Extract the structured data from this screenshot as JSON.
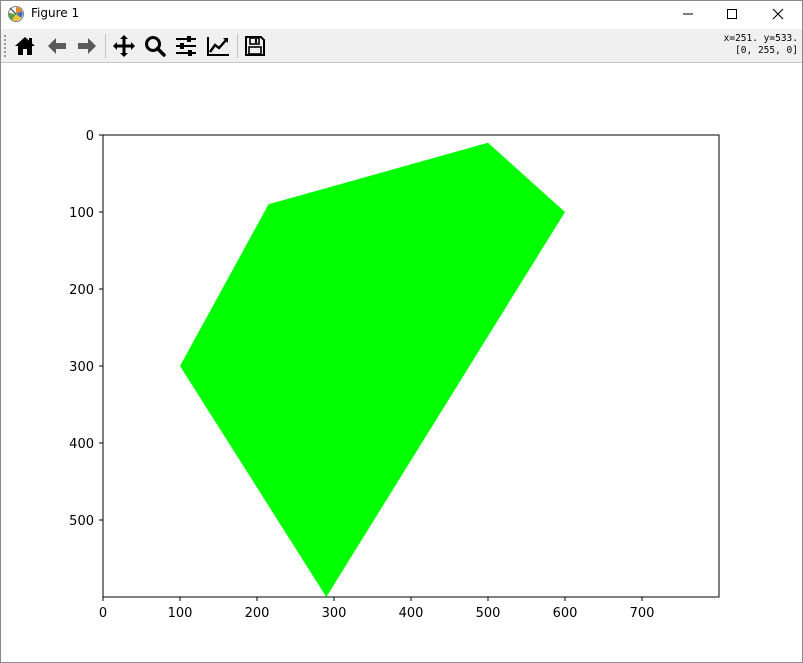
{
  "window": {
    "title": "Figure 1",
    "app_icon": "matplotlib-icon"
  },
  "toolbar": {
    "tools": [
      {
        "name": "home",
        "icon": "home-icon"
      },
      {
        "name": "back",
        "icon": "arrow-left-icon"
      },
      {
        "name": "forward",
        "icon": "arrow-right-icon"
      },
      {
        "name": "pan",
        "icon": "move-icon"
      },
      {
        "name": "zoom",
        "icon": "magnifier-icon"
      },
      {
        "name": "subplots",
        "icon": "sliders-icon"
      },
      {
        "name": "edit-axes",
        "icon": "line-chart-icon"
      },
      {
        "name": "save",
        "icon": "floppy-disk-icon"
      }
    ],
    "coords_line1": "x=251. y=533.",
    "coords_line2": "[0, 255, 0]"
  },
  "chart_data": {
    "type": "image",
    "title": "",
    "xlabel": "",
    "ylabel": "",
    "xlim": [
      0,
      800
    ],
    "ylim": [
      600,
      0
    ],
    "x_ticks": [
      "0",
      "100",
      "200",
      "300",
      "400",
      "500",
      "600",
      "700"
    ],
    "y_ticks": [
      "0",
      "100",
      "200",
      "300",
      "400",
      "500"
    ],
    "polygon": {
      "fill": "#00ff00",
      "vertices": [
        [
          500,
          10
        ],
        [
          600,
          100
        ],
        [
          290,
          600
        ],
        [
          100,
          300
        ],
        [
          215,
          90
        ]
      ]
    },
    "background": "#ffffff",
    "grid": false
  }
}
